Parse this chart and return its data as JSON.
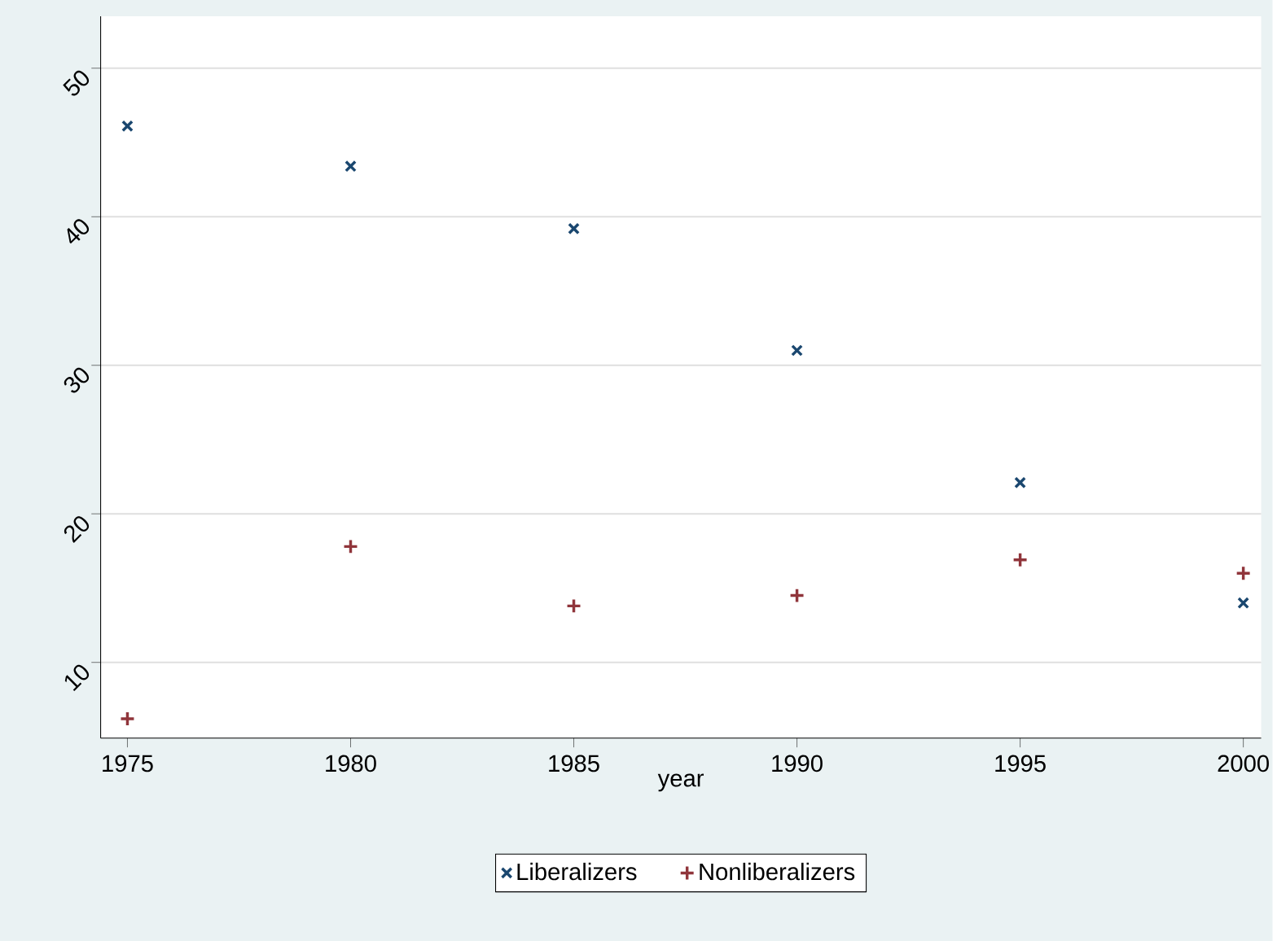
{
  "chart_data": {
    "type": "scatter",
    "xlabel": "year",
    "x": [
      1975,
      1980,
      1985,
      1990,
      1995,
      2000
    ],
    "xlim": [
      1974.4,
      2000.4
    ],
    "xticks": [
      1975,
      1980,
      1985,
      1990,
      1995,
      2000
    ],
    "ylim": [
      4.9,
      53.5
    ],
    "yticks": [
      10,
      20,
      30,
      40,
      50
    ],
    "grid": "y",
    "legend": "bottom",
    "series": [
      {
        "name": "Liberalizers",
        "color": "#1a476f",
        "marker": "cross",
        "values": [
          46.1,
          43.4,
          39.2,
          31.0,
          22.1,
          14.0
        ]
      },
      {
        "name": "Nonliberalizers",
        "color": "#90353b",
        "marker": "plus",
        "values": [
          6.2,
          17.8,
          13.8,
          14.5,
          16.9,
          16.0
        ]
      }
    ]
  }
}
